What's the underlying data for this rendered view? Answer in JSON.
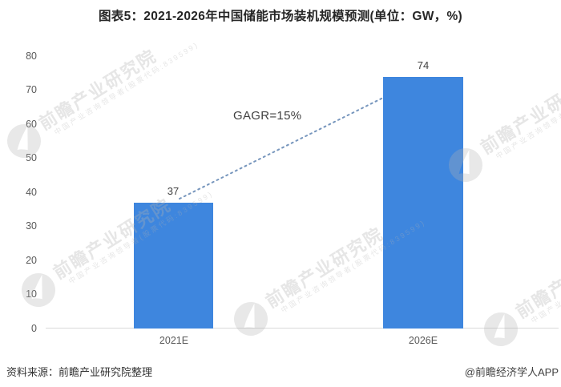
{
  "title": "图表5：2021-2026年中国储能市场装机规模预测(单位：GW，%)",
  "chart_data": {
    "type": "bar",
    "title": "图表5：2021-2026年中国储能市场装机规模预测(单位：GW，%)",
    "categories": [
      "2021E",
      "2026E"
    ],
    "values": [
      37,
      74
    ],
    "unit": "GW",
    "ylim": [
      0,
      80
    ],
    "ytick_interval": 10,
    "yticks": [
      "80",
      "70",
      "60",
      "50",
      "40",
      "30",
      "20",
      "10",
      "0"
    ],
    "annotation": "GAGR=15%",
    "bar_color": "#3e86de",
    "trendline_style": "dotted",
    "trendline_color": "#7796bd",
    "grid": false,
    "legend_position": "none",
    "xlabel": "",
    "ylabel": ""
  },
  "footer": {
    "source": "资料来源：前瞻产业研究院整理",
    "credit": "@前瞻经济学人APP"
  },
  "watermark": {
    "brand": "前瞻产业研究院",
    "tagline": "中国产业咨询领导者(股票代码:839599)"
  }
}
